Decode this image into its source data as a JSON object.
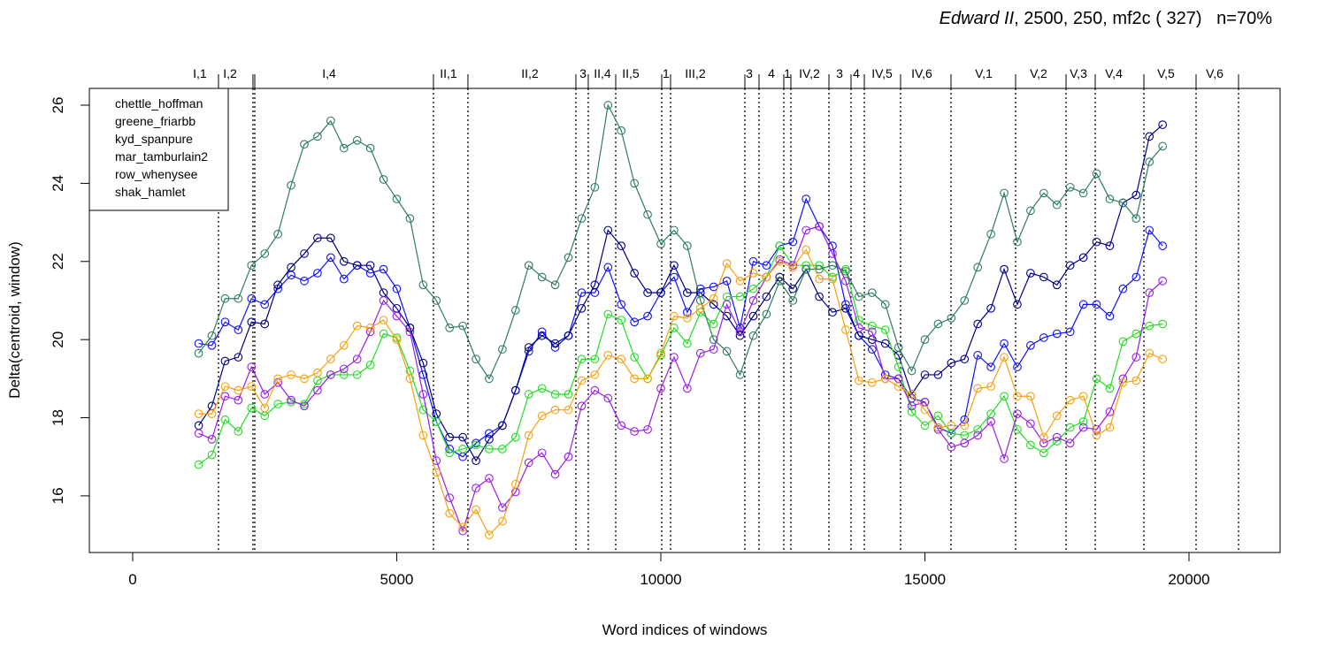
{
  "chart_data": {
    "type": "line",
    "title": {
      "italic": "Edward II",
      "rest": ", 2500, 250, mf2c ( 327)   n=70%"
    },
    "x_label": "Word indices of windows",
    "y_label": "Delta(centroid, window)",
    "xlim": [
      -820,
      21725
    ],
    "ylim": [
      14.55,
      26.43
    ],
    "xticks": [
      0,
      5000,
      10000,
      15000,
      20000
    ],
    "yticks": [
      16,
      18,
      20,
      22,
      24,
      26
    ],
    "grid": false,
    "legend": "top-left",
    "x": [
      1250,
      1500,
      1750,
      2000,
      2250,
      2500,
      2750,
      3000,
      3250,
      3500,
      3750,
      4000,
      4250,
      4500,
      4750,
      5000,
      5250,
      5500,
      5750,
      6000,
      6250,
      6500,
      6750,
      7000,
      7250,
      7500,
      7750,
      8000,
      8250,
      8500,
      8750,
      9000,
      9250,
      9500,
      9750,
      10000,
      10250,
      10500,
      10750,
      11000,
      11250,
      11500,
      11750,
      12000,
      12250,
      12500,
      12750,
      13000,
      13250,
      13500,
      13750,
      14000,
      14250,
      14500,
      14750,
      15000,
      15250,
      15500,
      15750,
      16000,
      16250,
      16500,
      16750,
      17000,
      17250,
      17500,
      17750,
      18000,
      18250,
      18500,
      18750,
      19000,
      19250,
      19500
    ],
    "series": [
      {
        "name": "chettle_hoffman",
        "color": "#1010ff",
        "values": [
          19.9,
          19.85,
          20.45,
          20.25,
          21.05,
          20.9,
          21.3,
          21.65,
          21.5,
          21.7,
          22.1,
          21.55,
          21.9,
          21.7,
          21.8,
          21.3,
          20.3,
          19.1,
          17.9,
          17.2,
          17.0,
          17.35,
          17.6,
          17.8,
          18.7,
          19.7,
          20.2,
          19.8,
          20.1,
          21.2,
          21.2,
          21.85,
          20.9,
          20.45,
          20.6,
          21.2,
          21.6,
          20.7,
          21.3,
          21.35,
          21.5,
          20.3,
          22.0,
          21.9,
          22.4,
          22.5,
          23.6,
          22.9,
          22.4,
          20.9,
          20.1,
          19.75,
          19.1,
          19.0,
          18.5,
          18.4,
          17.75,
          17.6,
          17.95,
          19.6,
          19.3,
          19.9,
          19.3,
          19.85,
          20.05,
          20.15,
          20.2,
          20.9,
          20.9,
          20.6,
          21.3,
          21.6,
          22.8,
          22.4
        ]
      },
      {
        "name": "greene_friarbb",
        "color": "#000080",
        "values": [
          17.8,
          18.3,
          19.45,
          19.55,
          20.45,
          20.4,
          21.4,
          21.85,
          22.2,
          22.6,
          22.6,
          22.0,
          21.9,
          21.9,
          21.2,
          20.8,
          20.3,
          19.4,
          18.1,
          17.5,
          17.5,
          16.9,
          17.45,
          17.8,
          18.7,
          19.8,
          20.1,
          19.9,
          20.1,
          20.8,
          21.4,
          22.8,
          22.4,
          21.7,
          21.2,
          21.2,
          21.9,
          21.2,
          21.2,
          20.9,
          20.6,
          20.1,
          20.6,
          21.1,
          21.6,
          21.3,
          21.8,
          21.1,
          20.7,
          20.8,
          20.1,
          20.0,
          19.9,
          19.6,
          18.6,
          19.1,
          19.1,
          19.4,
          19.5,
          20.4,
          20.8,
          21.8,
          20.9,
          21.7,
          21.6,
          21.4,
          21.9,
          22.1,
          22.5,
          22.4,
          23.5,
          23.7,
          25.2,
          25.5
        ]
      },
      {
        "name": "kyd_spanpure",
        "color": "#22dd22",
        "values": [
          16.8,
          17.05,
          17.95,
          17.65,
          18.25,
          18.05,
          18.35,
          18.4,
          18.35,
          18.95,
          19.1,
          19.1,
          19.1,
          19.35,
          20.15,
          20.05,
          19.2,
          18.2,
          17.9,
          17.1,
          17.2,
          17.3,
          17.2,
          17.2,
          17.5,
          18.6,
          18.75,
          18.6,
          18.6,
          19.5,
          19.5,
          20.65,
          20.5,
          19.55,
          19.0,
          19.6,
          20.3,
          19.9,
          20.7,
          20.4,
          21.1,
          21.1,
          21.3,
          21.6,
          22.4,
          21.9,
          21.9,
          21.9,
          21.6,
          21.8,
          20.5,
          20.35,
          20.25,
          19.3,
          18.15,
          17.8,
          18.05,
          17.6,
          17.55,
          17.7,
          18.1,
          18.55,
          17.7,
          17.3,
          17.1,
          17.4,
          17.75,
          17.9,
          19.0,
          18.75,
          19.95,
          20.15,
          20.35,
          20.4
        ]
      },
      {
        "name": "mar_tamburlain2",
        "color": "#2e7d5b",
        "values": [
          19.65,
          20.1,
          21.05,
          21.05,
          21.9,
          22.2,
          22.7,
          23.95,
          25.0,
          25.2,
          25.6,
          24.9,
          25.1,
          24.9,
          24.1,
          23.6,
          23.1,
          21.4,
          21.0,
          20.3,
          20.35,
          19.5,
          19.0,
          19.75,
          20.75,
          21.9,
          21.6,
          21.4,
          22.1,
          23.1,
          23.9,
          26.0,
          25.35,
          24.0,
          23.2,
          22.45,
          22.8,
          22.4,
          21.0,
          20.0,
          19.7,
          19.1,
          20.1,
          20.65,
          21.5,
          21.0,
          21.8,
          21.8,
          21.9,
          21.75,
          21.1,
          21.2,
          20.9,
          19.8,
          19.2,
          20.0,
          20.4,
          20.55,
          21.0,
          21.85,
          22.7,
          23.75,
          22.5,
          23.3,
          23.75,
          23.45,
          23.9,
          23.75,
          24.25,
          23.6,
          23.5,
          23.1,
          24.55,
          24.95
        ]
      },
      {
        "name": "row_whenysee",
        "color": "#9a1ee6",
        "values": [
          17.6,
          17.45,
          18.55,
          18.45,
          19.3,
          18.6,
          18.9,
          18.45,
          18.3,
          18.7,
          19.1,
          19.25,
          19.5,
          20.2,
          21.0,
          20.6,
          20.2,
          18.6,
          16.9,
          15.95,
          15.1,
          16.2,
          16.45,
          15.7,
          16.1,
          16.85,
          17.1,
          16.55,
          17.0,
          18.3,
          18.7,
          18.5,
          17.8,
          17.65,
          17.7,
          18.75,
          19.55,
          18.75,
          19.65,
          19.75,
          20.9,
          20.2,
          21.0,
          21.6,
          22.05,
          21.9,
          22.8,
          22.9,
          22.2,
          21.5,
          20.3,
          20.2,
          19.0,
          19.0,
          18.3,
          18.4,
          17.7,
          17.25,
          17.35,
          17.55,
          17.9,
          16.95,
          18.1,
          17.85,
          17.35,
          17.5,
          17.35,
          17.75,
          17.7,
          18.15,
          19.0,
          19.55,
          21.2,
          21.5
        ]
      },
      {
        "name": "shak_hamlet",
        "color": "#f5a00f",
        "values": [
          18.1,
          18.1,
          18.8,
          18.7,
          18.8,
          18.25,
          19.0,
          19.1,
          19.0,
          19.15,
          19.5,
          19.85,
          20.35,
          20.3,
          20.5,
          20.0,
          19.0,
          17.55,
          16.6,
          15.55,
          15.2,
          15.65,
          15.0,
          15.35,
          16.3,
          17.55,
          18.05,
          18.2,
          18.2,
          18.95,
          19.1,
          19.6,
          19.5,
          19.0,
          19.0,
          19.65,
          20.6,
          20.55,
          20.8,
          21.05,
          21.95,
          21.5,
          21.7,
          21.6,
          22.0,
          21.85,
          22.3,
          21.55,
          21.55,
          20.25,
          18.95,
          18.9,
          19.0,
          18.8,
          18.6,
          18.2,
          17.75,
          17.8,
          17.8,
          18.75,
          18.8,
          19.55,
          18.55,
          18.55,
          17.5,
          18.05,
          18.45,
          18.55,
          17.55,
          17.75,
          18.9,
          18.95,
          19.65,
          19.5
        ]
      }
    ],
    "scene_boundaries": [
      1625,
      2278,
      2312,
      5695,
      6348,
      8392,
      8626,
      9146,
      10017,
      10184,
      11591,
      11859,
      12328,
      12462,
      13183,
      13601,
      13853,
      14539,
      15494,
      16717,
      17672,
      18224,
      19146,
      20134,
      20938
    ],
    "scene_labels": [
      {
        "label": "I,1",
        "x": 1273
      },
      {
        "label": "I,2",
        "x": 1843
      },
      {
        "label": "I,4",
        "x": 3719
      },
      {
        "label": "II,1",
        "x": 5980
      },
      {
        "label": "II,2",
        "x": 7521
      },
      {
        "label": "3",
        "x": 8526
      },
      {
        "label": "II,4",
        "x": 8894
      },
      {
        "label": "II,5",
        "x": 9430
      },
      {
        "label": "1",
        "x": 10100
      },
      {
        "label": "III,2",
        "x": 10653
      },
      {
        "label": "3",
        "x": 11675
      },
      {
        "label": "4",
        "x": 12094
      },
      {
        "label": "1",
        "x": 12395
      },
      {
        "label": "IV,2",
        "x": 12814
      },
      {
        "label": "3",
        "x": 13384
      },
      {
        "label": "4",
        "x": 13702
      },
      {
        "label": "IV,5",
        "x": 14188
      },
      {
        "label": "IV,6",
        "x": 14941
      },
      {
        "label": "V,1",
        "x": 16114
      },
      {
        "label": "V,2",
        "x": 17152
      },
      {
        "label": "V,3",
        "x": 17906
      },
      {
        "label": "V,4",
        "x": 18576
      },
      {
        "label": "V,5",
        "x": 19564
      },
      {
        "label": "V,6",
        "x": 20486
      }
    ]
  }
}
